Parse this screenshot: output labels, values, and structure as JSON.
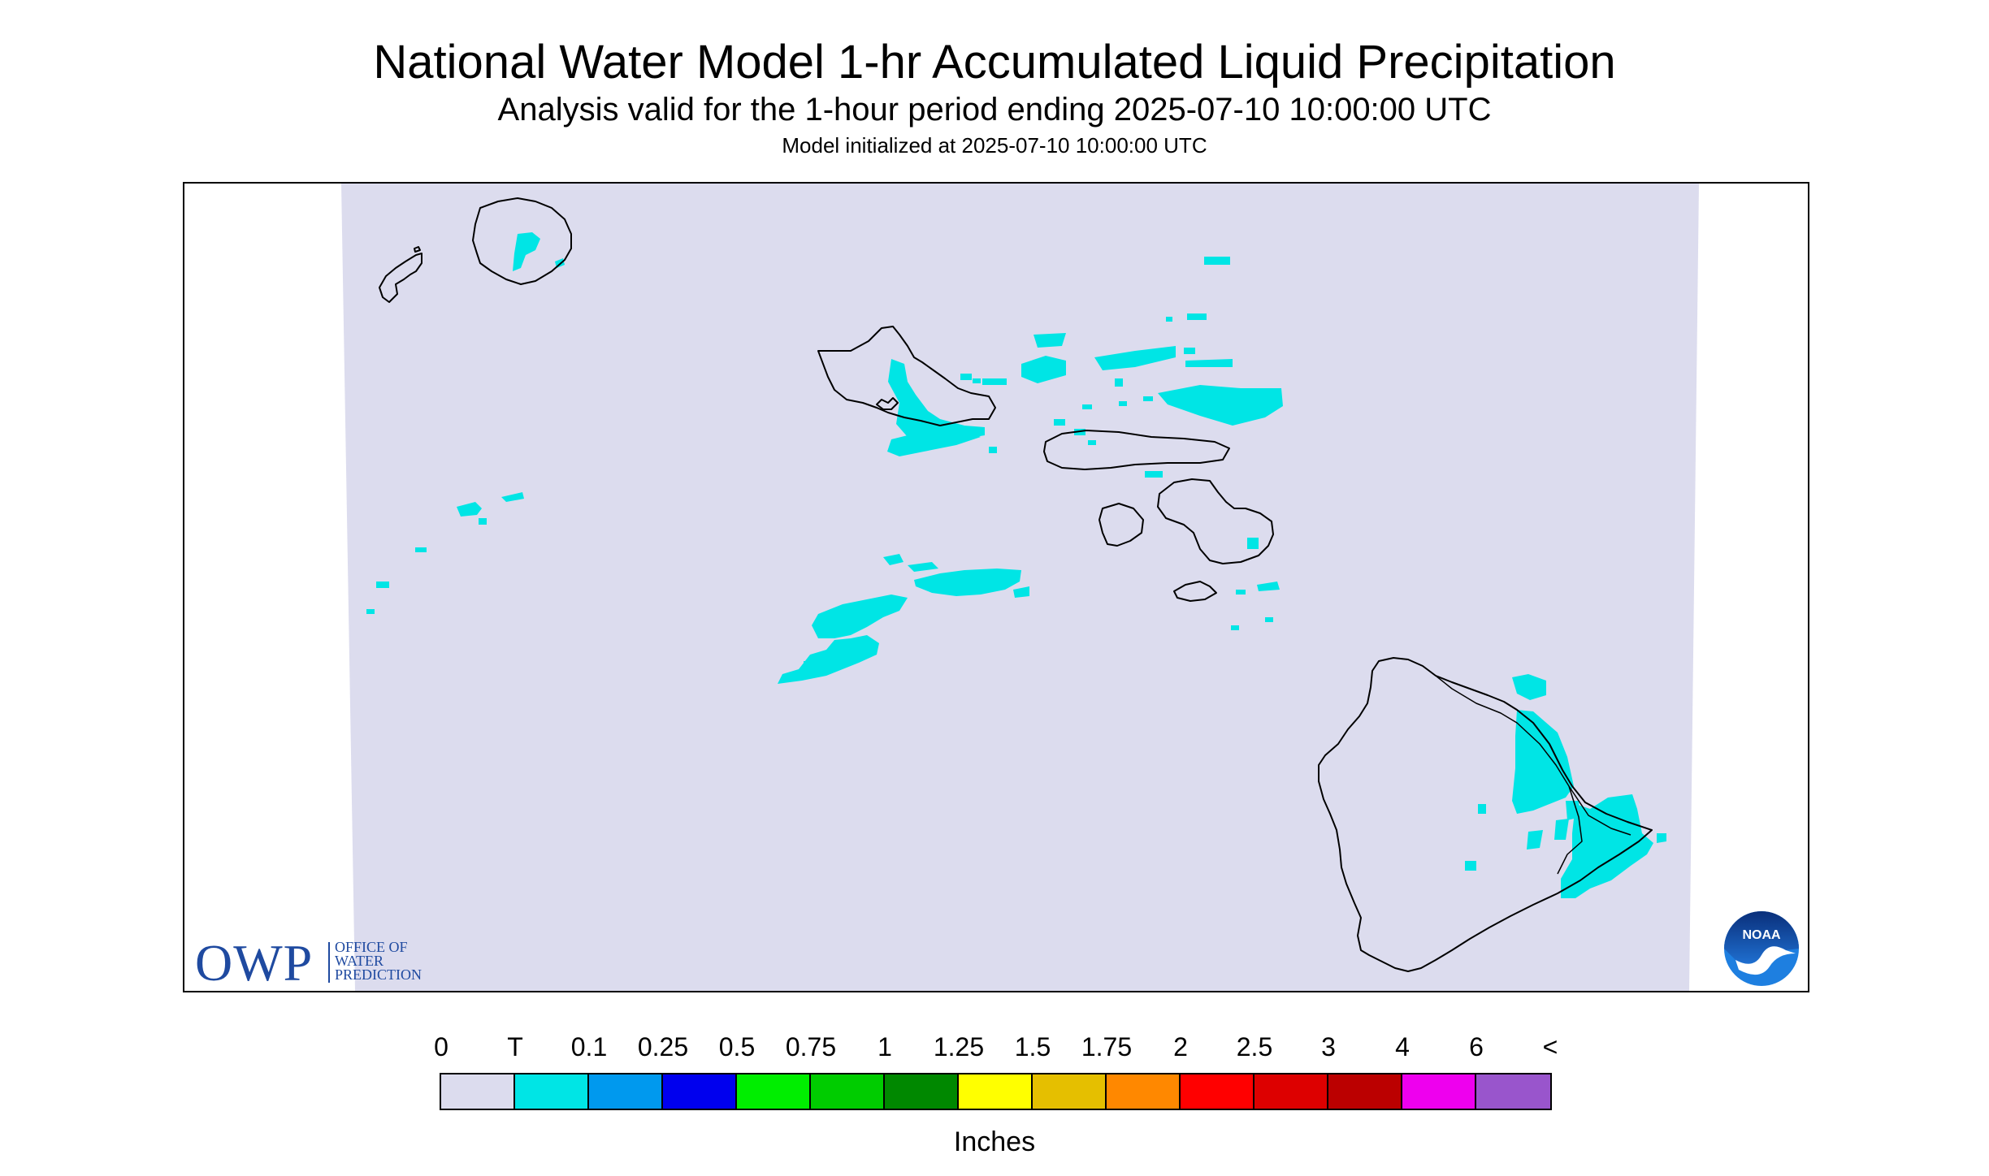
{
  "header": {
    "title": "National Water Model 1-hr Accumulated Liquid Precipitation",
    "subtitle": "Analysis valid for the 1-hour period ending 2025-07-10 10:00:00 UTC",
    "init": "Model initialized at 2025-07-10 10:00:00 UTC"
  },
  "map": {
    "background_color": "#dcdcee",
    "precip_color": "#00e5e5",
    "coast_color": "#000000",
    "region": "Hawaiian Islands"
  },
  "logos": {
    "owp_big": "OWP",
    "owp_lines": [
      "OFFICE OF",
      "WATER",
      "PREDICTION"
    ],
    "noaa": "NOAA"
  },
  "legend": {
    "labels": [
      "0",
      "T",
      "0.1",
      "0.25",
      "0.5",
      "0.75",
      "1",
      "1.25",
      "1.5",
      "1.75",
      "2",
      "2.5",
      "3",
      "4",
      "6",
      "<"
    ],
    "colors": [
      "#dcdcee",
      "#00e5e5",
      "#0099ee",
      "#0000ee",
      "#00ee00",
      "#00cc00",
      "#008800",
      "#ffff00",
      "#e5bf00",
      "#ff8800",
      "#ff0000",
      "#dd0000",
      "#bb0000",
      "#ee00ee",
      "#9955cc"
    ],
    "units": "Inches"
  }
}
